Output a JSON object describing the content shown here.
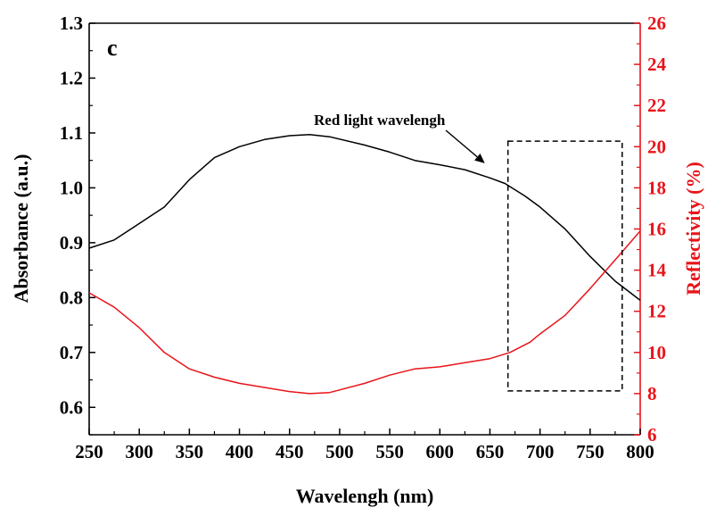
{
  "chart_data": {
    "type": "line",
    "panel_label": "c",
    "xlabel": "Wavelengh (nm)",
    "ylabel_left": "Absorbance (a.u.)",
    "ylabel_right": "Reflectivity (%)",
    "xlim": [
      250,
      800
    ],
    "ylim_left": [
      0.55,
      1.3
    ],
    "ylim_right": [
      6,
      26
    ],
    "x_ticks": [
      250,
      300,
      350,
      400,
      450,
      500,
      550,
      600,
      650,
      700,
      750,
      800
    ],
    "y_left_ticks": [
      "0.6",
      "0.7",
      "0.8",
      "0.9",
      "1.0",
      "1.1",
      "1.2",
      "1.3"
    ],
    "y_right_ticks": [
      6,
      8,
      10,
      12,
      14,
      16,
      18,
      20,
      22,
      24,
      26
    ],
    "grid": false,
    "annotation": {
      "text": "Red light wavelengh",
      "arrow_to": [
        652,
        1.035
      ],
      "box_x": [
        668,
        782
      ],
      "box_y_left": [
        0.63,
        1.085
      ]
    },
    "series": [
      {
        "axis": "left",
        "color": "#000000",
        "x": [
          250,
          275,
          300,
          325,
          350,
          375,
          400,
          425,
          450,
          470,
          490,
          525,
          550,
          575,
          600,
          625,
          650,
          665,
          685,
          700,
          725,
          750,
          775,
          800
        ],
        "y": [
          0.89,
          0.905,
          0.935,
          0.965,
          1.015,
          1.055,
          1.075,
          1.088,
          1.095,
          1.097,
          1.093,
          1.078,
          1.065,
          1.05,
          1.042,
          1.033,
          1.018,
          1.008,
          0.985,
          0.965,
          0.925,
          0.875,
          0.83,
          0.795
        ]
      },
      {
        "axis": "right",
        "color": "#e8141a",
        "x": [
          250,
          275,
          300,
          325,
          350,
          375,
          400,
          425,
          450,
          470,
          490,
          525,
          550,
          575,
          600,
          625,
          650,
          670,
          690,
          700,
          725,
          750,
          775,
          800
        ],
        "y": [
          12.9,
          12.2,
          11.2,
          10.0,
          9.2,
          8.8,
          8.5,
          8.3,
          8.1,
          8.0,
          8.05,
          8.5,
          8.9,
          9.2,
          9.3,
          9.5,
          9.7,
          10.0,
          10.5,
          10.9,
          11.8,
          13.1,
          14.5,
          15.9
        ]
      }
    ]
  }
}
